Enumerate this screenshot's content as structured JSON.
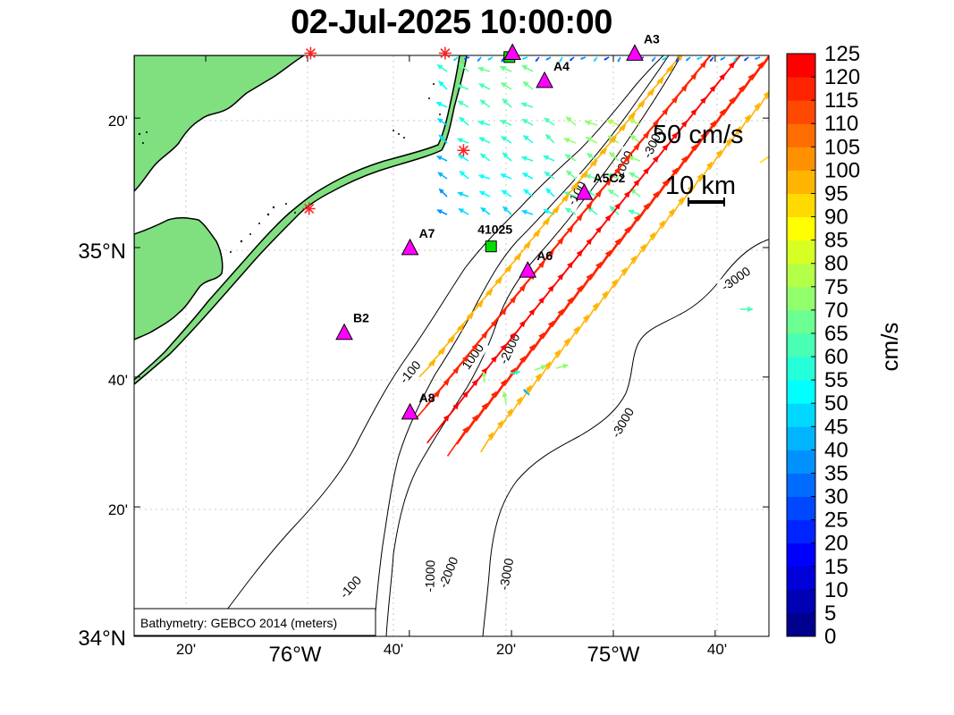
{
  "title": "02-Jul-2025 10:00:00",
  "x_ticks": [
    {
      "label": "20'",
      "lon": -76.333
    },
    {
      "label": "76°W",
      "lon": -76.0
    },
    {
      "label": "40'",
      "lon": -75.667
    },
    {
      "label": "20'",
      "lon": -75.333
    },
    {
      "label": "75°W",
      "lon": -75.0
    },
    {
      "label": "40'",
      "lon": -74.667
    }
  ],
  "y_ticks": [
    {
      "label": "34°N",
      "lat": 34.0
    },
    {
      "label": "20'",
      "lat": 34.333
    },
    {
      "label": "40'",
      "lat": 34.667
    },
    {
      "label": "35°N",
      "lat": 35.0
    },
    {
      "label": "20'",
      "lat": 35.333
    }
  ],
  "colorbar": {
    "label": "cm/s",
    "ticks": [
      "0",
      "5",
      "10",
      "15",
      "20",
      "25",
      "30",
      "35",
      "40",
      "45",
      "50",
      "55",
      "60",
      "65",
      "70",
      "75",
      "80",
      "85",
      "90",
      "95",
      "100",
      "105",
      "110",
      "115",
      "120",
      "125"
    ],
    "colors": [
      "#00008f",
      "#0000b4",
      "#0000d8",
      "#0000ff",
      "#0024ff",
      "#0048ff",
      "#006cff",
      "#0091ff",
      "#00b4ff",
      "#00d8ff",
      "#00ffff",
      "#24ffda",
      "#48ffb4",
      "#6cff91",
      "#91ff6c",
      "#b4ff48",
      "#d8ff24",
      "#ffff00",
      "#ffda00",
      "#ffb400",
      "#ff9100",
      "#ff6c00",
      "#ff4800",
      "#ff2400",
      "#ff0000"
    ]
  },
  "scale": {
    "speed_label": "50 cm/s",
    "distance_label": "10 km"
  },
  "bathymetry_note": "Bathymetry: GEBCO 2014 (meters)",
  "contour_labels": [
    {
      "text": "-100",
      "lon": -75.86,
      "lat": 34.127,
      "rot": -48
    },
    {
      "text": "-1000",
      "lon": -75.6,
      "lat": 34.155,
      "rot": -88
    },
    {
      "text": "-2000",
      "lon": -75.54,
      "lat": 34.165,
      "rot": -68
    },
    {
      "text": "-3000",
      "lon": -75.35,
      "lat": 34.16,
      "rot": -80
    },
    {
      "text": "-100",
      "lon": -75.665,
      "lat": 34.68,
      "rot": -50
    },
    {
      "text": "1000",
      "lon": -75.46,
      "lat": 34.72,
      "rot": -55
    },
    {
      "text": "-2000",
      "lon": -75.34,
      "lat": 34.74,
      "rot": -65
    },
    {
      "text": "-3000",
      "lon": -74.97,
      "lat": 34.55,
      "rot": -60
    },
    {
      "text": "-3000",
      "lon": -74.6,
      "lat": 34.92,
      "rot": -35
    },
    {
      "text": "-100",
      "lon": -75.12,
      "lat": 35.14,
      "rot": -60
    },
    {
      "text": "-2000",
      "lon": -74.97,
      "lat": 35.21,
      "rot": -65
    },
    {
      "text": "-3000",
      "lon": -74.87,
      "lat": 35.27,
      "rot": -65
    }
  ],
  "stations": [
    {
      "name": "A3",
      "type": "triangle",
      "lon": -74.93,
      "lat": 35.498
    },
    {
      "name": "A4",
      "type": "triangle",
      "lon": -75.225,
      "lat": 35.428
    },
    {
      "name": "A5C2",
      "type": "triangle",
      "lon": -75.095,
      "lat": 35.14
    },
    {
      "name": "A7",
      "type": "triangle",
      "lon": -75.665,
      "lat": 34.998
    },
    {
      "name": "A6",
      "type": "triangle",
      "lon": -75.28,
      "lat": 34.94
    },
    {
      "name": "B2",
      "type": "triangle",
      "lon": -75.88,
      "lat": 34.78
    },
    {
      "name": "A8",
      "type": "triangle",
      "lon": -75.665,
      "lat": 34.575
    },
    {
      "name": "41025",
      "type": "square",
      "lon": -75.4,
      "lat": 35.003
    },
    {
      "name": "",
      "type": "square",
      "lon": -75.34,
      "lat": 35.49
    },
    {
      "name": "",
      "type": "triangle",
      "lon": -75.33,
      "lat": 35.5
    }
  ],
  "radar_sites": [
    {
      "lon": -75.99,
      "lat": 35.5
    },
    {
      "lon": -75.55,
      "lat": 35.5
    },
    {
      "lon": -75.49,
      "lat": 35.25
    },
    {
      "lon": -75.995,
      "lat": 35.1
    }
  ]
}
